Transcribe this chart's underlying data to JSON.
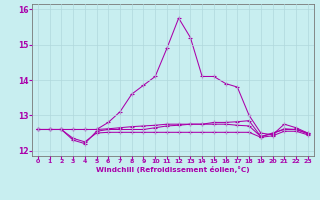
{
  "xlabel": "Windchill (Refroidissement éolien,°C)",
  "background_color": "#c8eef0",
  "grid_color": "#b0d8dc",
  "line_color": "#aa00aa",
  "x_values": [
    0,
    1,
    2,
    3,
    4,
    5,
    6,
    7,
    8,
    9,
    10,
    11,
    12,
    13,
    14,
    15,
    16,
    17,
    18,
    19,
    20,
    21,
    22,
    23
  ],
  "series1": [
    12.6,
    12.6,
    12.6,
    12.6,
    12.6,
    12.6,
    12.8,
    13.1,
    13.6,
    13.85,
    14.1,
    14.9,
    15.75,
    15.2,
    14.1,
    14.1,
    13.9,
    13.8,
    13.0,
    12.5,
    12.45,
    12.75,
    12.65,
    12.5
  ],
  "series2": [
    12.6,
    12.6,
    12.6,
    12.3,
    12.2,
    12.55,
    12.6,
    12.6,
    12.6,
    12.6,
    12.65,
    12.7,
    12.72,
    12.75,
    12.75,
    12.8,
    12.8,
    12.82,
    12.85,
    12.4,
    12.5,
    12.6,
    12.6,
    12.5
  ],
  "series3": [
    12.6,
    12.6,
    12.6,
    12.35,
    12.25,
    12.5,
    12.52,
    12.52,
    12.52,
    12.52,
    12.52,
    12.52,
    12.52,
    12.52,
    12.52,
    12.52,
    12.52,
    12.52,
    12.52,
    12.38,
    12.42,
    12.55,
    12.55,
    12.45
  ],
  "series4": [
    12.6,
    12.6,
    12.6,
    12.6,
    12.6,
    12.6,
    12.62,
    12.65,
    12.68,
    12.7,
    12.72,
    12.75,
    12.75,
    12.75,
    12.75,
    12.75,
    12.75,
    12.72,
    12.7,
    12.4,
    12.48,
    12.62,
    12.6,
    12.48
  ],
  "ylim": [
    11.85,
    16.15
  ],
  "yticks": [
    12,
    13,
    14,
    15,
    16
  ],
  "xticks": [
    0,
    1,
    2,
    3,
    4,
    5,
    6,
    7,
    8,
    9,
    10,
    11,
    12,
    13,
    14,
    15,
    16,
    17,
    18,
    19,
    20,
    21,
    22,
    23
  ]
}
